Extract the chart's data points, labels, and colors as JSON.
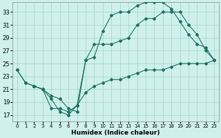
{
  "xlabel": "Humidex (Indice chaleur)",
  "bg_color": "#cff0ec",
  "grid_color": "#a8d8d0",
  "line_color": "#1a7060",
  "xlim": [
    -0.5,
    23.5
  ],
  "ylim": [
    16,
    34.5
  ],
  "xticks": [
    0,
    1,
    2,
    3,
    4,
    5,
    6,
    7,
    8,
    9,
    10,
    11,
    12,
    13,
    14,
    15,
    16,
    17,
    18,
    19,
    20,
    21,
    22,
    23
  ],
  "yticks": [
    17,
    19,
    21,
    23,
    25,
    27,
    29,
    31,
    33
  ],
  "line1_x": [
    0,
    1,
    2,
    3,
    4,
    5,
    6,
    7,
    8,
    9,
    10,
    11,
    12,
    13,
    14,
    15,
    16,
    17,
    18,
    19,
    20,
    21,
    22,
    23
  ],
  "line1_y": [
    24,
    22,
    21.5,
    21,
    18,
    18,
    17.5,
    18.5,
    20.5,
    21.5,
    22,
    22.5,
    22.5,
    23,
    23.5,
    24,
    24,
    24,
    24.5,
    25,
    25,
    25,
    25,
    25.5
  ],
  "line2_x": [
    0,
    1,
    2,
    3,
    4,
    5,
    6,
    7,
    8,
    9,
    10,
    11,
    12,
    13,
    14,
    15,
    16,
    17,
    18,
    19,
    20,
    21,
    22,
    23
  ],
  "line2_y": [
    24,
    22,
    21.5,
    21,
    19.5,
    17.5,
    17,
    18.5,
    25.5,
    26,
    30,
    32.5,
    33,
    33,
    34,
    34.5,
    34.5,
    34.5,
    33.5,
    31.5,
    29.5,
    28,
    27.5,
    25.5
  ],
  "line3_x": [
    2,
    3,
    4,
    5,
    6,
    7,
    8,
    9,
    10,
    11,
    12,
    13,
    14,
    15,
    16,
    17,
    18,
    19,
    20,
    21,
    22,
    23
  ],
  "line3_y": [
    21.5,
    21,
    20,
    19.5,
    18,
    17.5,
    25.5,
    28,
    28,
    28,
    28.5,
    29,
    31,
    32,
    32,
    33,
    33,
    33,
    31,
    29.5,
    27,
    25.5
  ]
}
